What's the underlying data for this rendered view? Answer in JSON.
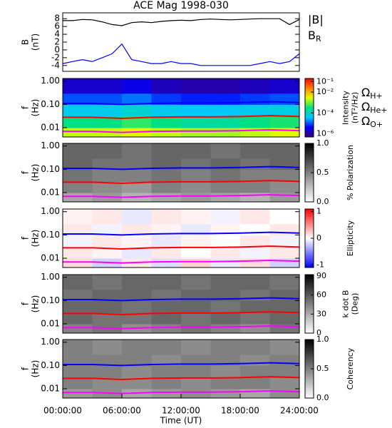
{
  "title": "ACE Mag 1998-030",
  "chart_data": [
    {
      "type": "line",
      "y_label": [
        "B",
        "(nT)"
      ],
      "xlim": [
        0,
        24
      ],
      "ylim": [
        -5.5,
        9.5
      ],
      "yticks": [
        -4,
        -2,
        0,
        2,
        4,
        6,
        8
      ],
      "x": [
        0,
        1,
        2,
        3,
        4,
        5,
        6,
        7,
        8,
        9,
        10,
        11,
        12,
        13,
        14,
        15,
        16,
        17,
        18,
        19,
        20,
        21,
        22,
        23,
        24
      ],
      "series": [
        {
          "name": "|B|",
          "color": "#000000",
          "values": [
            7.5,
            7.5,
            7.8,
            7.7,
            7.2,
            6.5,
            6.2,
            7.0,
            7.2,
            7.0,
            7.3,
            7.5,
            7.6,
            7.5,
            7.8,
            7.9,
            7.8,
            7.7,
            7.8,
            7.9,
            8.0,
            8.0,
            8.0,
            6.5,
            7.8
          ]
        },
        {
          "name": "B",
          "subscript": "R",
          "color": "#0000ff",
          "values": [
            -3.5,
            -3,
            -2.5,
            -3,
            -2,
            -1,
            1.5,
            -2.5,
            -3,
            -3.5,
            -3.5,
            -3,
            -3.5,
            -3.5,
            -4,
            -4,
            -4,
            -4,
            -4,
            -4,
            -3.5,
            -3,
            -3.5,
            -3,
            -1
          ]
        }
      ]
    },
    {
      "type": "heatmap",
      "y_label": [
        "f",
        "(Hz)"
      ],
      "log_y": true,
      "xlim": [
        0,
        24
      ],
      "ylim": [
        0.004,
        1.3
      ],
      "yticks": [
        {
          "value": 0.01,
          "label": "0.01"
        },
        {
          "value": 0.1,
          "label": "0.10"
        },
        {
          "value": 1,
          "label": "1.00"
        }
      ],
      "x": [
        0,
        3,
        6,
        9,
        12,
        15,
        18,
        21,
        24
      ],
      "y_bins": [
        0.004,
        0.01,
        0.03,
        0.1,
        0.3,
        1.3
      ],
      "z": [
        [
          0.002,
          0.002,
          0.003,
          0.002,
          0.0015,
          0.0015,
          0.002,
          0.003
        ],
        [
          0.0003,
          0.0003,
          0.0005,
          0.0003,
          0.0002,
          0.0002,
          0.0003,
          0.0004
        ],
        [
          5e-05,
          5e-05,
          8e-05,
          5e-05,
          4e-05,
          4e-05,
          5e-05,
          6e-05
        ],
        [
          1e-05,
          1e-05,
          1.5e-05,
          8e-06,
          6e-06,
          6e-06,
          8e-06,
          1e-05
        ],
        [
          2e-06,
          2e-06,
          3e-06,
          1.5e-06,
          1.2e-06,
          1.2e-06,
          1.5e-06,
          2e-06
        ]
      ],
      "colormap": "rainbow",
      "log_z": true,
      "zlim": [
        5e-07,
        0.2
      ],
      "zticks": [
        {
          "value": 1e-06,
          "label": "10⁻⁶"
        },
        {
          "value": 0.0001,
          "label": "10⁻⁴"
        },
        {
          "value": 0.01,
          "label": "10⁻²"
        },
        {
          "value": 0.1,
          "label": "10⁻¹"
        }
      ],
      "z_label": [
        "Intensity",
        "(nT²/Hz)"
      ],
      "series": [
        {
          "name": "Ω",
          "subscript": "H+",
          "color": "#0000ff",
          "values": [
            0.11,
            0.11,
            0.1,
            0.11,
            0.115,
            0.115,
            0.12,
            0.13,
            0.12
          ]
        },
        {
          "name": "Ω",
          "subscript": "He+",
          "color": "#ff0000",
          "values": [
            0.028,
            0.028,
            0.025,
            0.028,
            0.029,
            0.029,
            0.03,
            0.033,
            0.03
          ]
        },
        {
          "name": "Ω",
          "subscript": "O+",
          "color": "#ff00ff",
          "values": [
            0.0069,
            0.0069,
            0.0063,
            0.0069,
            0.0072,
            0.0072,
            0.0075,
            0.0081,
            0.0075
          ]
        }
      ]
    },
    {
      "type": "heatmap",
      "y_label": [
        "f",
        "(Hz)"
      ],
      "log_y": true,
      "xlim": [
        0,
        24
      ],
      "ylim": [
        0.004,
        1.3
      ],
      "yticks": [
        {
          "value": 0.01,
          "label": "0.01"
        },
        {
          "value": 0.1,
          "label": "0.10"
        },
        {
          "value": 1,
          "label": "1.00"
        }
      ],
      "x": [
        0,
        3,
        6,
        9,
        12,
        15,
        18,
        21,
        24
      ],
      "y_bins": [
        0.004,
        0.01,
        0.03,
        0.1,
        0.3,
        1.3
      ],
      "z": [
        [
          0.35,
          0.4,
          0.3,
          0.35,
          0.4,
          0.35,
          0.3,
          0.4
        ],
        [
          0.5,
          0.45,
          0.4,
          0.5,
          0.45,
          0.5,
          0.5,
          0.45
        ],
        [
          0.55,
          0.5,
          0.5,
          0.55,
          0.5,
          0.55,
          0.5,
          0.5
        ],
        [
          0.6,
          0.55,
          0.55,
          0.6,
          0.55,
          0.6,
          0.55,
          0.6
        ],
        [
          0.6,
          0.6,
          0.55,
          0.6,
          0.6,
          0.55,
          0.6,
          0.6
        ]
      ],
      "colormap": "gray",
      "zlim": [
        0,
        1
      ],
      "zticks": [
        {
          "value": 0,
          "label": "0.0"
        },
        {
          "value": 0.5,
          "label": "0.5"
        },
        {
          "value": 1,
          "label": "1.0"
        }
      ],
      "z_label": [
        "% Polarization"
      ],
      "series": [
        {
          "color": "#0000ff",
          "values": [
            0.11,
            0.11,
            0.1,
            0.11,
            0.115,
            0.115,
            0.12,
            0.13,
            0.12
          ]
        },
        {
          "color": "#ff0000",
          "values": [
            0.028,
            0.028,
            0.025,
            0.028,
            0.029,
            0.029,
            0.03,
            0.033,
            0.03
          ]
        },
        {
          "color": "#ff00ff",
          "values": [
            0.0069,
            0.0069,
            0.0063,
            0.0069,
            0.0072,
            0.0072,
            0.0075,
            0.0081,
            0.0075
          ]
        }
      ]
    },
    {
      "type": "heatmap",
      "y_label": [
        "f",
        "(Hz)"
      ],
      "log_y": true,
      "xlim": [
        0,
        24
      ],
      "ylim": [
        0.004,
        1.3
      ],
      "yticks": [
        {
          "value": 0.01,
          "label": "0.01"
        },
        {
          "value": 0.1,
          "label": "0.10"
        },
        {
          "value": 1,
          "label": "1.00"
        }
      ],
      "x": [
        0,
        3,
        6,
        9,
        12,
        15,
        18,
        21,
        24
      ],
      "y_bins": [
        0.004,
        0.01,
        0.03,
        0.1,
        0.3,
        1.3
      ],
      "z": [
        [
          0.15,
          -0.2,
          0.1,
          -0.15,
          0.2,
          -0.1,
          0.15,
          -0.2
        ],
        [
          0.1,
          0.05,
          -0.1,
          0.1,
          0,
          0.1,
          -0.05,
          0.1
        ],
        [
          -0.05,
          0.1,
          0.05,
          -0.1,
          0.05,
          0,
          0.1,
          -0.05
        ],
        [
          0.1,
          -0.05,
          0.1,
          0.05,
          -0.1,
          0.05,
          0,
          0.1
        ],
        [
          0.05,
          0.1,
          -0.1,
          0.1,
          0.05,
          -0.05,
          0.1,
          0
        ]
      ],
      "colormap": "bwr",
      "zlim": [
        -1.1,
        1.1
      ],
      "zticks": [
        -1,
        0,
        1
      ],
      "z_label": [
        "Ellipticity"
      ],
      "series": [
        {
          "color": "#0000ff",
          "values": [
            0.11,
            0.11,
            0.1,
            0.11,
            0.115,
            0.115,
            0.12,
            0.13,
            0.12
          ]
        },
        {
          "color": "#ff0000",
          "values": [
            0.028,
            0.028,
            0.025,
            0.028,
            0.029,
            0.029,
            0.03,
            0.033,
            0.03
          ]
        },
        {
          "color": "#ff00ff",
          "values": [
            0.0069,
            0.0069,
            0.0063,
            0.0069,
            0.0072,
            0.0072,
            0.0075,
            0.0081,
            0.0075
          ]
        }
      ]
    },
    {
      "type": "heatmap",
      "y_label": [
        "f",
        "(Hz)"
      ],
      "log_y": true,
      "xlim": [
        0,
        24
      ],
      "ylim": [
        0.004,
        1.3
      ],
      "yticks": [
        {
          "value": 0.01,
          "label": "0.01"
        },
        {
          "value": 0.1,
          "label": "0.10"
        },
        {
          "value": 1,
          "label": "1.00"
        }
      ],
      "x": [
        0,
        3,
        6,
        9,
        12,
        15,
        18,
        21,
        24
      ],
      "y_bins": [
        0.004,
        0.01,
        0.03,
        0.1,
        0.3,
        1.3
      ],
      "z": [
        [
          45,
          50,
          40,
          45,
          50,
          45,
          40,
          50
        ],
        [
          55,
          50,
          50,
          55,
          50,
          55,
          50,
          55
        ],
        [
          55,
          55,
          50,
          55,
          55,
          50,
          55,
          55
        ],
        [
          50,
          55,
          55,
          50,
          55,
          55,
          50,
          55
        ],
        [
          55,
          50,
          55,
          55,
          50,
          55,
          55,
          50
        ]
      ],
      "colormap": "gray",
      "zlim": [
        0,
        92
      ],
      "zticks": [
        0,
        30,
        60,
        90
      ],
      "z_label": [
        "k dot B",
        "(Deg)"
      ],
      "series": [
        {
          "color": "#0000ff",
          "values": [
            0.11,
            0.11,
            0.1,
            0.11,
            0.115,
            0.115,
            0.12,
            0.13,
            0.12
          ]
        },
        {
          "color": "#ff0000",
          "values": [
            0.028,
            0.028,
            0.025,
            0.028,
            0.029,
            0.029,
            0.03,
            0.033,
            0.03
          ]
        },
        {
          "color": "#ff00ff",
          "values": [
            0.0069,
            0.0069,
            0.0063,
            0.0069,
            0.0072,
            0.0072,
            0.0075,
            0.0081,
            0.0075
          ]
        }
      ]
    },
    {
      "type": "heatmap",
      "y_label": [
        "f",
        "(Hz)"
      ],
      "log_y": true,
      "xlim": [
        0,
        24
      ],
      "ylim": [
        0.004,
        1.3
      ],
      "yticks": [
        {
          "value": 0.01,
          "label": "0.01"
        },
        {
          "value": 0.1,
          "label": "0.10"
        },
        {
          "value": 1,
          "label": "1.00"
        }
      ],
      "x": [
        0,
        3,
        6,
        9,
        12,
        15,
        18,
        21,
        24
      ],
      "y_bins": [
        0.004,
        0.01,
        0.03,
        0.1,
        0.3,
        1.3
      ],
      "z": [
        [
          0.4,
          0.45,
          0.35,
          0.4,
          0.45,
          0.4,
          0.35,
          0.45
        ],
        [
          0.5,
          0.45,
          0.45,
          0.5,
          0.45,
          0.5,
          0.5,
          0.45
        ],
        [
          0.5,
          0.5,
          0.45,
          0.5,
          0.5,
          0.45,
          0.5,
          0.5
        ],
        [
          0.5,
          0.5,
          0.5,
          0.45,
          0.5,
          0.5,
          0.45,
          0.5
        ],
        [
          0.5,
          0.45,
          0.5,
          0.5,
          0.45,
          0.5,
          0.5,
          0.45
        ]
      ],
      "colormap": "gray",
      "zlim": [
        0,
        1
      ],
      "zticks": [
        {
          "value": 0,
          "label": "0.0"
        },
        {
          "value": 0.5,
          "label": "0.5"
        },
        {
          "value": 1,
          "label": "1.0"
        }
      ],
      "z_label": [
        "Coherency"
      ],
      "xticks": [
        {
          "value": 0,
          "label": "00:00:00"
        },
        {
          "value": 6,
          "label": "06:00:00"
        },
        {
          "value": 12,
          "label": "12:00:00"
        },
        {
          "value": 18,
          "label": "18:00:00"
        },
        {
          "value": 24,
          "label": "24:00:00"
        }
      ],
      "x_label": "Time (UT)",
      "series": [
        {
          "color": "#0000ff",
          "values": [
            0.11,
            0.11,
            0.1,
            0.11,
            0.115,
            0.115,
            0.12,
            0.13,
            0.12
          ]
        },
        {
          "color": "#ff0000",
          "values": [
            0.028,
            0.028,
            0.025,
            0.028,
            0.029,
            0.029,
            0.03,
            0.033,
            0.03
          ]
        },
        {
          "color": "#ff00ff",
          "values": [
            0.0069,
            0.0069,
            0.0063,
            0.0069,
            0.0072,
            0.0072,
            0.0075,
            0.0081,
            0.0075
          ]
        }
      ]
    }
  ]
}
